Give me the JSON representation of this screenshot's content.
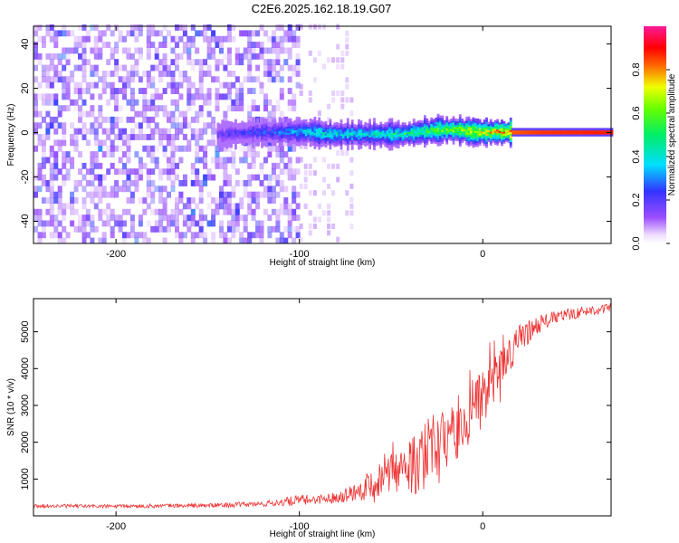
{
  "figure": {
    "title": "C2E6.2025.162.18.19.G07"
  },
  "chart_data": [
    {
      "type": "heatmap",
      "title": "C2E6.2025.162.18.19.G07",
      "xlabel": "Height of straight line (km)",
      "ylabel": "Frequency (Hz)",
      "xlim": [
        -245,
        70
      ],
      "ylim": [
        -50,
        48
      ],
      "x_ticks": [
        -200,
        -100,
        0
      ],
      "x_tick_labels": [
        "-200",
        "-100",
        "0"
      ],
      "y_ticks": [
        -40,
        -20,
        0,
        20,
        40
      ],
      "y_tick_labels": [
        "-40",
        "-20",
        "0",
        "20",
        "40"
      ],
      "grid": false,
      "colorbar": {
        "label": "Normalized spectral amplitude",
        "range": [
          0,
          1
        ],
        "ticks": [
          0.0,
          0.2,
          0.4,
          0.6,
          0.8
        ],
        "tick_labels": [
          "0.0",
          "0.2",
          "0.4",
          "0.6",
          "0.8"
        ],
        "colormap": "rainbow (white-violet-blue-cyan-green-yellow-red-magenta)"
      },
      "ridge": [
        {
          "x": -145,
          "freq": -1,
          "amp": 0.18
        },
        {
          "x": -140,
          "freq": -1,
          "amp": 0.2
        },
        {
          "x": -125,
          "freq": 0,
          "amp": 0.25
        },
        {
          "x": -110,
          "freq": 0,
          "amp": 0.3
        },
        {
          "x": -95,
          "freq": 0,
          "amp": 0.4
        },
        {
          "x": -85,
          "freq": -1,
          "amp": 0.45
        },
        {
          "x": -75,
          "freq": -1,
          "amp": 0.42
        },
        {
          "x": -65,
          "freq": -1,
          "amp": 0.4
        },
        {
          "x": -55,
          "freq": -1,
          "amp": 0.45
        },
        {
          "x": -45,
          "freq": -1,
          "amp": 0.48
        },
        {
          "x": -35,
          "freq": 0,
          "amp": 0.55
        },
        {
          "x": -25,
          "freq": 1,
          "amp": 0.6
        },
        {
          "x": -15,
          "freq": 1,
          "amp": 0.65
        },
        {
          "x": -5,
          "freq": 0,
          "amp": 0.75
        },
        {
          "x": 5,
          "freq": 0,
          "amp": 0.8
        },
        {
          "x": 15,
          "freq": 0,
          "amp": 0.92
        },
        {
          "x": 30,
          "freq": 0,
          "amp": 0.95
        },
        {
          "x": 45,
          "freq": 0,
          "amp": 0.96
        },
        {
          "x": 60,
          "freq": 0,
          "amp": 0.97
        },
        {
          "x": 70,
          "freq": 0,
          "amp": 0.97
        }
      ],
      "noise_region_x": [
        -245,
        -100
      ],
      "noise_amp_range": [
        0.05,
        0.2
      ]
    },
    {
      "type": "line",
      "xlabel": "Height of straight line (km)",
      "ylabel": "SNR (10 * v/v)",
      "xlim": [
        -245,
        70
      ],
      "ylim": [
        0,
        5900
      ],
      "x_ticks": [
        -200,
        -100,
        0
      ],
      "x_tick_labels": [
        "-200",
        "-100",
        "0"
      ],
      "y_ticks": [
        1000,
        2000,
        3000,
        4000,
        5000
      ],
      "y_tick_labels": [
        "1000",
        "2000",
        "3000",
        "4000",
        "5000"
      ],
      "grid": false,
      "series": [
        {
          "color": "#ee3333",
          "envelope": [
            {
              "x": -245,
              "base": 270,
              "amp": 100
            },
            {
              "x": -200,
              "base": 260,
              "amp": 100
            },
            {
              "x": -150,
              "base": 280,
              "amp": 120
            },
            {
              "x": -120,
              "base": 320,
              "amp": 150
            },
            {
              "x": -100,
              "base": 420,
              "amp": 300
            },
            {
              "x": -90,
              "base": 450,
              "amp": 250
            },
            {
              "x": -80,
              "base": 500,
              "amp": 300
            },
            {
              "x": -70,
              "base": 650,
              "amp": 500
            },
            {
              "x": -60,
              "base": 900,
              "amp": 900
            },
            {
              "x": -50,
              "base": 1100,
              "amp": 1100
            },
            {
              "x": -40,
              "base": 1300,
              "amp": 1400
            },
            {
              "x": -30,
              "base": 1600,
              "amp": 2200
            },
            {
              "x": -20,
              "base": 2000,
              "amp": 1800
            },
            {
              "x": -10,
              "base": 2600,
              "amp": 1800
            },
            {
              "x": 0,
              "base": 3200,
              "amp": 1500
            },
            {
              "x": 10,
              "base": 4000,
              "amp": 1200
            },
            {
              "x": 20,
              "base": 4800,
              "amp": 800
            },
            {
              "x": 30,
              "base": 5200,
              "amp": 500
            },
            {
              "x": 40,
              "base": 5400,
              "amp": 350
            },
            {
              "x": 55,
              "base": 5550,
              "amp": 300
            },
            {
              "x": 70,
              "base": 5650,
              "amp": 250
            }
          ]
        }
      ]
    }
  ]
}
